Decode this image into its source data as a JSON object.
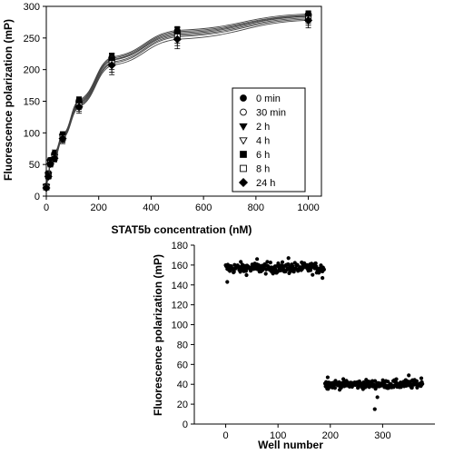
{
  "chart_data": [
    {
      "type": "line",
      "title": "",
      "xlabel": "STAT5b concentration (nM)",
      "ylabel": "Fluorescence polarization (mP)",
      "xlim": [
        0,
        1050
      ],
      "ylim": [
        0,
        300
      ],
      "xticks": [
        0,
        200,
        400,
        600,
        800,
        1000
      ],
      "yticks": [
        0,
        50,
        100,
        150,
        200,
        250,
        300
      ],
      "grid": false,
      "legend_position": "right",
      "x": [
        0,
        7.8,
        15.6,
        31.25,
        62.5,
        125,
        250,
        500,
        1000
      ],
      "series": [
        {
          "name": "0 min",
          "marker": "filled-circle",
          "values": [
            16,
            36,
            57,
            68,
            97,
            152,
            220,
            262,
            288
          ],
          "errors": [
            3,
            4,
            4,
            5,
            5,
            5,
            6,
            6,
            5
          ]
        },
        {
          "name": "30 min",
          "marker": "open-circle",
          "values": [
            15,
            35,
            55,
            65,
            95,
            150,
            218,
            260,
            286
          ],
          "errors": [
            3,
            4,
            4,
            5,
            6,
            6,
            8,
            8,
            6
          ]
        },
        {
          "name": "2 h",
          "marker": "filled-triangle-down",
          "values": [
            15,
            34,
            54,
            64,
            94,
            147,
            215,
            256,
            284
          ],
          "errors": [
            3,
            4,
            4,
            5,
            6,
            7,
            10,
            10,
            8
          ]
        },
        {
          "name": "4 h",
          "marker": "open-triangle-down",
          "values": [
            14,
            33,
            53,
            62,
            93,
            145,
            212,
            254,
            282
          ],
          "errors": [
            3,
            4,
            5,
            6,
            7,
            8,
            12,
            12,
            9
          ]
        },
        {
          "name": "6 h",
          "marker": "filled-square",
          "values": [
            15,
            34,
            55,
            64,
            95,
            148,
            216,
            258,
            285
          ],
          "errors": [
            3,
            4,
            4,
            5,
            6,
            7,
            9,
            9,
            7
          ]
        },
        {
          "name": "8 h",
          "marker": "open-square",
          "values": [
            14,
            32,
            52,
            61,
            92,
            143,
            210,
            252,
            280
          ],
          "errors": [
            3,
            4,
            5,
            6,
            7,
            9,
            14,
            14,
            10
          ]
        },
        {
          "name": "24 h",
          "marker": "filled-diamond",
          "values": [
            13,
            31,
            51,
            60,
            91,
            141,
            207,
            248,
            278
          ],
          "errors": [
            3,
            4,
            5,
            6,
            8,
            10,
            15,
            15,
            12
          ]
        }
      ]
    },
    {
      "type": "scatter",
      "title": "",
      "xlabel": "Well number",
      "ylabel": "Fluorescence polarization (mP)",
      "xlim": [
        -60,
        400
      ],
      "ylim": [
        0,
        180
      ],
      "xticks": [
        0,
        100,
        200,
        300
      ],
      "yticks": [
        0,
        20,
        40,
        60,
        80,
        100,
        120,
        140,
        160,
        180
      ],
      "grid": false,
      "groups": [
        {
          "x_range": [
            0,
            188
          ],
          "mean": 157,
          "spread": 4.5,
          "count": 190,
          "outliers": [
            [
              3,
              143
            ],
            [
              185,
              147
            ],
            [
              60,
              166
            ],
            [
              120,
              167
            ]
          ]
        },
        {
          "x_range": [
            190,
            376
          ],
          "mean": 40,
          "spread": 3.5,
          "count": 188,
          "outliers": [
            [
              285,
              15
            ],
            [
              290,
              27
            ],
            [
              195,
              47
            ],
            [
              350,
              49
            ],
            [
              374,
              46
            ]
          ]
        }
      ]
    }
  ]
}
